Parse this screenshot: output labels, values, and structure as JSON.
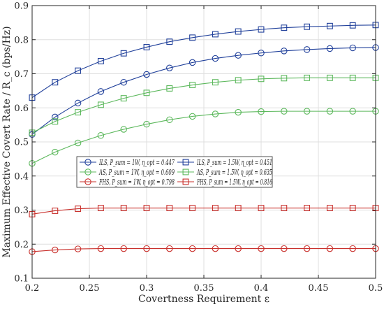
{
  "chart_data": {
    "type": "line",
    "title": "",
    "xlabel": "Covertness Requirement ε",
    "ylabel": "Maximum Effective Covert Rate / R_c (bps/Hz)",
    "xlim": [
      0.2,
      0.5
    ],
    "ylim": [
      0.1,
      0.9
    ],
    "xticks": [
      0.2,
      0.25,
      0.3,
      0.35,
      0.4,
      0.45,
      0.5
    ],
    "xtick_labels": [
      "0.2",
      "0.25",
      "0.3",
      "0.35",
      "0.4",
      "0.45",
      "0.5"
    ],
    "yticks": [
      0.1,
      0.2,
      0.3,
      0.4,
      0.5,
      0.6,
      0.7,
      0.8,
      0.9
    ],
    "ytick_labels": [
      "0.1",
      "0.2",
      "0.3",
      "0.4",
      "0.5",
      "0.6",
      "0.7",
      "0.8",
      "0.9"
    ],
    "grid": true,
    "legend_position": "center-left",
    "x": [
      0.2,
      0.22,
      0.24,
      0.26,
      0.28,
      0.3,
      0.32,
      0.34,
      0.36,
      0.38,
      0.4,
      0.42,
      0.44,
      0.46,
      0.48,
      0.5
    ],
    "series": [
      {
        "name": "ILS, P_sum = 1W, η_opt = 0.447",
        "color": "#1f3f9a",
        "marker": "circle",
        "values": [
          0.522,
          0.573,
          0.614,
          0.648,
          0.675,
          0.698,
          0.717,
          0.733,
          0.745,
          0.754,
          0.761,
          0.767,
          0.771,
          0.774,
          0.776,
          0.777
        ]
      },
      {
        "name": "ILS, P_sum = 1.5W, η_opt = 0.451",
        "color": "#1f3f9a",
        "marker": "square",
        "values": [
          0.63,
          0.675,
          0.709,
          0.737,
          0.76,
          0.778,
          0.794,
          0.806,
          0.816,
          0.824,
          0.83,
          0.835,
          0.838,
          0.84,
          0.842,
          0.843
        ]
      },
      {
        "name": "AS, P_sum = 1W, η_opt = 0.609",
        "color": "#5cb85c",
        "marker": "circle",
        "values": [
          0.437,
          0.47,
          0.497,
          0.519,
          0.537,
          0.552,
          0.565,
          0.575,
          0.582,
          0.587,
          0.589,
          0.59,
          0.59,
          0.59,
          0.59,
          0.59
        ]
      },
      {
        "name": "AS, P_sum = 1.5W, η_opt = 0.635",
        "color": "#5cb85c",
        "marker": "square",
        "values": [
          0.527,
          0.56,
          0.587,
          0.609,
          0.628,
          0.644,
          0.657,
          0.667,
          0.675,
          0.681,
          0.685,
          0.687,
          0.688,
          0.688,
          0.688,
          0.688
        ]
      },
      {
        "name": "FHS, P_sum = 1W, η_opt = 0.798",
        "color": "#c9302c",
        "marker": "circle",
        "values": [
          0.178,
          0.183,
          0.186,
          0.187,
          0.187,
          0.187,
          0.187,
          0.187,
          0.187,
          0.187,
          0.187,
          0.187,
          0.187,
          0.187,
          0.187,
          0.187
        ]
      },
      {
        "name": "FHS, P_sum = 1.5W, η_opt = 0.816",
        "color": "#c9302c",
        "marker": "square",
        "values": [
          0.288,
          0.298,
          0.304,
          0.306,
          0.306,
          0.306,
          0.306,
          0.306,
          0.306,
          0.306,
          0.306,
          0.306,
          0.306,
          0.306,
          0.306,
          0.306
        ]
      }
    ]
  }
}
